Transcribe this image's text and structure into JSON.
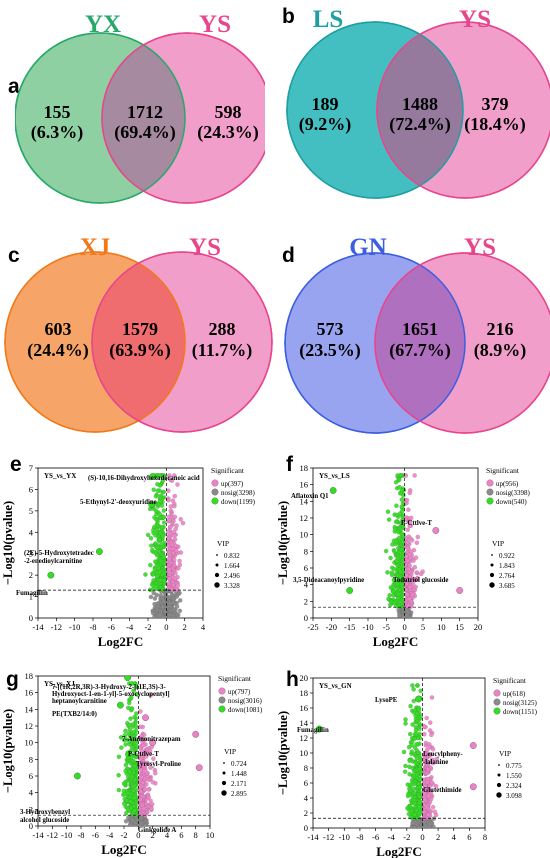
{
  "panels": [
    {
      "letter": "a",
      "left_label": "YX",
      "right_label": "YS",
      "left_color": "#28a96a",
      "left_fill": "#8fd0a2",
      "right_color": "#e8458d",
      "right_fill": "#ee8ec1",
      "overlap_fill": "#a58aa0",
      "left_count": "155",
      "left_pct": "(6.3%)",
      "mid_count": "1712",
      "mid_pct": "(69.4%)",
      "right_count": "598",
      "right_pct": "(24.3%)"
    },
    {
      "letter": "b",
      "left_label": "LS",
      "right_label": "YS",
      "left_color": "#1f9ea3",
      "left_fill": "#44bfc1",
      "right_color": "#e8458d",
      "right_fill": "#ee8ec1",
      "overlap_fill": "#957a9d",
      "left_count": "189",
      "left_pct": "(9.2%)",
      "mid_count": "1488",
      "mid_pct": "(72.4%)",
      "right_count": "379",
      "right_pct": "(18.4%)"
    },
    {
      "letter": "c",
      "left_label": "XJ",
      "right_label": "YS",
      "left_color": "#f07a1a",
      "left_fill": "#f6a468",
      "right_color": "#e8458d",
      "right_fill": "#ee8ec1",
      "overlap_fill": "#ef6c6f",
      "left_count": "603",
      "left_pct": "(24.4%)",
      "mid_count": "1579",
      "mid_pct": "(63.9%)",
      "right_count": "288",
      "right_pct": "(11.7%)"
    },
    {
      "letter": "d",
      "left_label": "GN",
      "right_label": "YS",
      "left_color": "#3b5fe0",
      "left_fill": "#98a4ef",
      "right_color": "#e8458d",
      "right_fill": "#ee8ec1",
      "overlap_fill": "#b070c0",
      "left_count": "573",
      "left_pct": "(23.5%)",
      "mid_count": "1651",
      "mid_pct": "(67.7%)",
      "right_count": "216",
      "right_pct": "(8.9%)"
    }
  ],
  "chart_data": [
    {
      "type": "scatter",
      "letter": "e",
      "title": "YS_vs_YX",
      "xlabel": "Log2FC",
      "ylabel": "−Log10(pvalue)",
      "xlim": [
        -14,
        4
      ],
      "ylim": [
        0,
        7
      ],
      "xticks": [
        -14,
        -12,
        -10,
        -8,
        -6,
        -4,
        -2,
        0,
        2,
        4
      ],
      "yticks": [
        0,
        1,
        2,
        3,
        4,
        5,
        6,
        7
      ],
      "threshold_y": 1.3,
      "legend_title": "Significant",
      "legend": [
        "up(397)",
        "nosig(3298)",
        "down(1199)"
      ],
      "vip_title": "VIP",
      "vip": [
        "0.832",
        "1.664",
        "2.496",
        "3.328"
      ],
      "annotations": [
        {
          "text": "(S)-10,16-Dihydroxyhexadecanoic acid",
          "x": -1.5,
          "y": 6.6
        },
        {
          "text": "5-Ethynyl-2'-deoxyuridine",
          "x": -1.5,
          "y": 5.3
        },
        {
          "text": "(2E)-5-Hydroxytetradec",
          "x": -7.3,
          "y": 3.6
        },
        {
          "text": "-2-enedioylcarnitine",
          "x": -7.3,
          "y": 3.6
        },
        {
          "text": "Fumagillin",
          "x": -12.6,
          "y": 2.0
        }
      ],
      "highlights": [
        [
          -1.5,
          6.6
        ],
        [
          -1.6,
          5.3
        ],
        [
          -7.3,
          3.1
        ],
        [
          -12.6,
          2.0
        ]
      ]
    },
    {
      "type": "scatter",
      "letter": "f",
      "title": "YS_vs_LS",
      "xlabel": "Log2FC",
      "ylabel": "−Log10(pvalue)",
      "xlim": [
        -25,
        20
      ],
      "ylim": [
        0,
        18
      ],
      "xticks": [
        -25,
        -20,
        -15,
        -10,
        -5,
        0,
        5,
        10,
        15,
        20
      ],
      "yticks": [
        0,
        2,
        4,
        6,
        8,
        10,
        12,
        14,
        16,
        18
      ],
      "threshold_y": 1.3,
      "legend_title": "Significant",
      "legend": [
        "up(956)",
        "nosig(3398)",
        "down(540)"
      ],
      "vip_title": "VIP",
      "vip": [
        "0.922",
        "1.843",
        "2.764",
        "3.685"
      ],
      "annotations": [
        {
          "text": "Aflatoxin Q1",
          "x": -19.5,
          "y": 15.3
        },
        {
          "text": "P-Cttlve-T",
          "x": 8.5,
          "y": 10.5
        },
        {
          "text": "3,5-Dideacanoylpyridine",
          "x": -15,
          "y": 3.5
        },
        {
          "text": "Todatriol glucoside",
          "x": 15,
          "y": 3.5
        }
      ],
      "highlights": [
        [
          -19.5,
          15.3
        ],
        [
          8.5,
          10.5
        ],
        [
          -15,
          3.3
        ],
        [
          15,
          3.3
        ]
      ]
    },
    {
      "type": "scatter",
      "letter": "g",
      "title": "YS_vs_XJ",
      "xlabel": "Log2FC",
      "ylabel": "−Log10(pvalue)",
      "xlim": [
        -14,
        10
      ],
      "ylim": [
        0,
        18
      ],
      "xticks": [
        -14,
        -12,
        -10,
        -8,
        -6,
        -4,
        -2,
        0,
        2,
        4,
        6,
        8,
        10
      ],
      "yticks": [
        0,
        2,
        4,
        6,
        8,
        10,
        12,
        14,
        16,
        18
      ],
      "threshold_y": 1.3,
      "legend_title": "Significant",
      "legend": [
        "up(797)",
        "nosig(3016)",
        "down(1081)"
      ],
      "vip_title": "VIP",
      "vip": [
        "0.724",
        "1.448",
        "2.171",
        "2.895"
      ],
      "annotations": [
        {
          "text": "7-[(1R,2R,3R)-3-Hydroxy-2-[(1E,3S)-3-",
          "x": -5,
          "y": 17.5
        },
        {
          "text": "Hydroxyoct-1-en-1-yl]-5-oxocyclopentyl]",
          "x": -5,
          "y": 17.5
        },
        {
          "text": "heptanoylcarnitine",
          "x": -5,
          "y": 17.5
        },
        {
          "text": "PE(TXB2/14:0)",
          "x": -2.5,
          "y": 14.5
        },
        {
          "text": "7-Aminonitrazepam",
          "x": 1,
          "y": 13
        },
        {
          "text": "P-Cttlve-T",
          "x": 8,
          "y": 11
        },
        {
          "text": "Tyrosyl-Proline",
          "x": 2,
          "y": 10
        },
        {
          "text": "3-Hydroxybenzyl",
          "x": -8.5,
          "y": 6
        },
        {
          "text": "alcohol glucoside",
          "x": -8.5,
          "y": 6
        },
        {
          "text": "Ginkgolide A",
          "x": 8.5,
          "y": 7
        }
      ],
      "highlights": [
        [
          -1.5,
          17.8
        ],
        [
          -2.5,
          14.5
        ],
        [
          1,
          13
        ],
        [
          8,
          11
        ],
        [
          2,
          10
        ],
        [
          -8.5,
          6
        ],
        [
          8.5,
          7
        ]
      ]
    },
    {
      "type": "scatter",
      "letter": "h",
      "title": "YS_vs_GN",
      "xlabel": "Log2FC",
      "ylabel": "−Log10(pvalue)",
      "xlim": [
        -14,
        8
      ],
      "ylim": [
        0,
        20
      ],
      "xticks": [
        -14,
        -12,
        -10,
        -8,
        -6,
        -4,
        -2,
        0,
        2,
        4,
        6,
        8
      ],
      "yticks": [
        0,
        2,
        4,
        6,
        8,
        10,
        12,
        14,
        16,
        18,
        20
      ],
      "threshold_y": 1.3,
      "legend_title": "Significant",
      "legend": [
        "up(618)",
        "nosig(3125)",
        "down(1151)"
      ],
      "vip_title": "VIP",
      "vip": [
        "0.775",
        "1.550",
        "2.324",
        "3.098"
      ],
      "annotations": [
        {
          "text": "LysoPE",
          "x": -0.5,
          "y": 17.2
        },
        {
          "text": "Fumagillin",
          "x": -13.2,
          "y": 13.2
        },
        {
          "text": "Leucylpheny-",
          "x": 6.5,
          "y": 11
        },
        {
          "text": "-lalanine",
          "x": 6.5,
          "y": 11
        },
        {
          "text": "Glutethimide",
          "x": 6.5,
          "y": 5.5
        }
      ],
      "highlights": [
        [
          -0.5,
          17.2
        ],
        [
          -13.2,
          13.2
        ],
        [
          6.5,
          11
        ],
        [
          6.5,
          5.5
        ]
      ]
    }
  ]
}
